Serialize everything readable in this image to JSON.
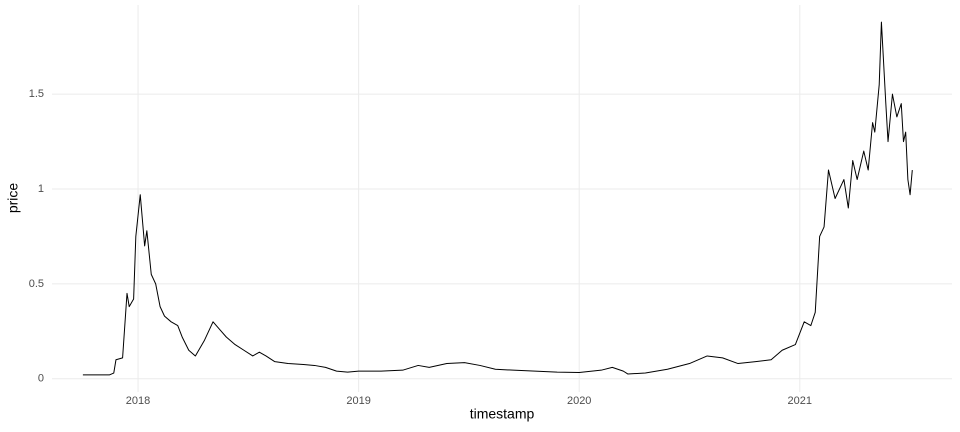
{
  "chart_data": {
    "type": "line",
    "x_label": "timestamp",
    "y_label": "price",
    "xlim": [
      2017.61,
      2021.69
    ],
    "xticks": [
      2018,
      2019,
      2020,
      2021
    ],
    "ylim": [
      -0.07,
      1.97
    ],
    "yticks": [
      0.0,
      0.5,
      1.0,
      1.5
    ],
    "grid": true,
    "series": [
      {
        "name": "price",
        "color": "#000000",
        "x": [
          2017.75,
          2017.8,
          2017.87,
          2017.89,
          2017.9,
          2017.93,
          2017.95,
          2017.96,
          2017.98,
          2017.99,
          2018.01,
          2018.03,
          2018.04,
          2018.06,
          2018.08,
          2018.1,
          2018.12,
          2018.15,
          2018.18,
          2018.2,
          2018.23,
          2018.26,
          2018.28,
          2018.3,
          2018.32,
          2018.34,
          2018.37,
          2018.4,
          2018.44,
          2018.48,
          2018.52,
          2018.55,
          2018.58,
          2018.62,
          2018.68,
          2018.75,
          2018.8,
          2018.85,
          2018.9,
          2018.95,
          2019.0,
          2019.1,
          2019.2,
          2019.27,
          2019.32,
          2019.4,
          2019.48,
          2019.55,
          2019.62,
          2019.7,
          2019.8,
          2019.9,
          2020.0,
          2020.1,
          2020.15,
          2020.2,
          2020.22,
          2020.3,
          2020.4,
          2020.5,
          2020.58,
          2020.65,
          2020.72,
          2020.8,
          2020.87,
          2020.92,
          2020.98,
          2021.02,
          2021.05,
          2021.07,
          2021.09,
          2021.11,
          2021.13,
          2021.16,
          2021.2,
          2021.22,
          2021.24,
          2021.26,
          2021.29,
          2021.31,
          2021.33,
          2021.34,
          2021.36,
          2021.37,
          2021.39,
          2021.4,
          2021.42,
          2021.44,
          2021.46,
          2021.47,
          2021.48,
          2021.49,
          2021.5,
          2021.51
        ],
        "values": [
          0.02,
          0.02,
          0.02,
          0.03,
          0.1,
          0.11,
          0.45,
          0.38,
          0.42,
          0.75,
          0.97,
          0.7,
          0.78,
          0.55,
          0.5,
          0.38,
          0.33,
          0.3,
          0.28,
          0.22,
          0.15,
          0.12,
          0.16,
          0.2,
          0.25,
          0.3,
          0.26,
          0.22,
          0.18,
          0.15,
          0.12,
          0.14,
          0.12,
          0.09,
          0.08,
          0.075,
          0.07,
          0.06,
          0.04,
          0.035,
          0.04,
          0.04,
          0.045,
          0.07,
          0.06,
          0.08,
          0.085,
          0.07,
          0.05,
          0.045,
          0.04,
          0.035,
          0.033,
          0.045,
          0.06,
          0.04,
          0.025,
          0.03,
          0.05,
          0.08,
          0.12,
          0.11,
          0.08,
          0.09,
          0.1,
          0.15,
          0.18,
          0.3,
          0.28,
          0.35,
          0.75,
          0.8,
          1.1,
          0.95,
          1.05,
          0.9,
          1.15,
          1.05,
          1.2,
          1.1,
          1.35,
          1.3,
          1.55,
          1.88,
          1.45,
          1.25,
          1.5,
          1.38,
          1.45,
          1.25,
          1.3,
          1.05,
          0.97,
          1.1
        ]
      }
    ]
  }
}
